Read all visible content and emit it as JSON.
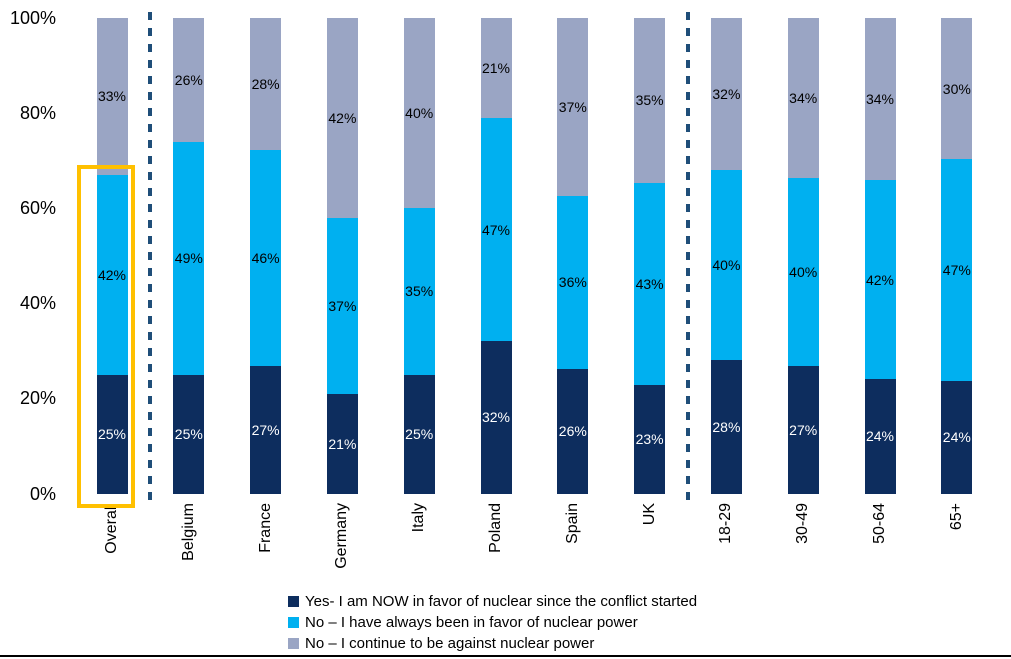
{
  "chart_data": {
    "type": "bar",
    "subtype": "stacked-percent-column",
    "title": "",
    "categories": [
      "Overall",
      "Belgium",
      "France",
      "Germany",
      "Italy",
      "Poland",
      "Spain",
      "UK",
      "18-29",
      "30-49",
      "50-64",
      "65+"
    ],
    "series": [
      {
        "key": "yes-now-in-favor",
        "name": "Yes- I am NOW in favor of nuclear since the conflict started",
        "color": "#0D2D5E",
        "label_color": "#FFFFFF",
        "values": [
          25,
          25,
          27,
          21,
          25,
          32,
          26,
          23,
          28,
          27,
          24,
          24
        ]
      },
      {
        "key": "no-always-in-favor",
        "name": "No – I have always been in favor of nuclear power",
        "color": "#00B0F0",
        "label_color": "#000000",
        "values": [
          42,
          49,
          46,
          37,
          35,
          47,
          36,
          43,
          40,
          40,
          42,
          47
        ]
      },
      {
        "key": "no-against",
        "name": "No – I continue to be against nuclear power",
        "color": "#9AA5C4",
        "label_color": "#000000",
        "values": [
          33,
          26,
          28,
          42,
          40,
          21,
          37,
          35,
          32,
          34,
          34,
          30
        ]
      }
    ],
    "y_axis": {
      "tick_labels": [
        "100%",
        "80%",
        "60%",
        "40%",
        "20%",
        "0%"
      ],
      "tick_values": [
        100,
        80,
        60,
        40,
        20,
        0
      ],
      "ylim": [
        0,
        100
      ]
    },
    "grid": false,
    "legend_position": "bottom",
    "separators_after_category_index": [
      0,
      7
    ],
    "separator_color": "#1F4E79",
    "highlight": {
      "category_index": 0,
      "category": "Overall",
      "color": "#FFC000",
      "note": "box around navy+cyan (in-favor) portion of Overall bar"
    }
  }
}
